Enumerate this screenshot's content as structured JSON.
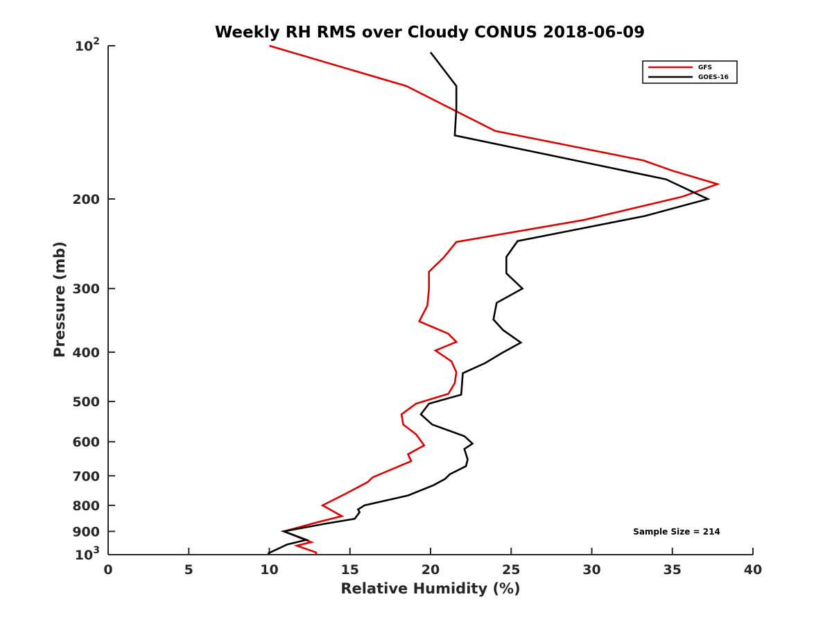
{
  "chart_data": {
    "type": "line",
    "title": "Weekly RH RMS over Cloudy CONUS 2018-06-09",
    "xlabel": "Relative Humidity (%)",
    "ylabel": "Pressure (mb)",
    "xlim": [
      0,
      40
    ],
    "ylim": [
      100,
      1000
    ],
    "y_scale": "log",
    "y_reversed": true,
    "grid": false,
    "legend_position": "top-right",
    "x_ticks": [
      0,
      5,
      10,
      15,
      20,
      25,
      30,
      35,
      40
    ],
    "y_ticks": [
      {
        "value": 100,
        "label": "10",
        "sup": "2"
      },
      {
        "value": 200,
        "label": "200"
      },
      {
        "value": 300,
        "label": "300"
      },
      {
        "value": 400,
        "label": "400"
      },
      {
        "value": 500,
        "label": "500"
      },
      {
        "value": 600,
        "label": "600"
      },
      {
        "value": 700,
        "label": "700"
      },
      {
        "value": 800,
        "label": "800"
      },
      {
        "value": 900,
        "label": "900"
      },
      {
        "value": 1000,
        "label": "10",
        "sup": "3"
      }
    ],
    "annotation": "Sample Size = 214",
    "series": [
      {
        "name": "GFS",
        "color": "#e00000",
        "points": [
          [
            10,
            100
          ],
          [
            18.5,
            120
          ],
          [
            24,
            147
          ],
          [
            33.2,
            168
          ],
          [
            35,
            176
          ],
          [
            37.8,
            187
          ],
          [
            35.6,
            198
          ],
          [
            29.5,
            220
          ],
          [
            21.6,
            243
          ],
          [
            20.8,
            261
          ],
          [
            19.9,
            278
          ],
          [
            19.9,
            300
          ],
          [
            19.8,
            324
          ],
          [
            19.3,
            348
          ],
          [
            21.1,
            368
          ],
          [
            21.6,
            382
          ],
          [
            20.3,
            397
          ],
          [
            21.3,
            417
          ],
          [
            21.6,
            438
          ],
          [
            21.5,
            460
          ],
          [
            21.1,
            483
          ],
          [
            19.1,
            505
          ],
          [
            18.2,
            530
          ],
          [
            18.3,
            555
          ],
          [
            19.1,
            580
          ],
          [
            19.6,
            610
          ],
          [
            18.6,
            635
          ],
          [
            18.8,
            655
          ],
          [
            16.4,
            705
          ],
          [
            16.1,
            720
          ],
          [
            14.7,
            760
          ],
          [
            13.3,
            800
          ],
          [
            14.5,
            840
          ],
          [
            12.9,
            865
          ],
          [
            10.9,
            900
          ],
          [
            12.6,
            945
          ],
          [
            11.7,
            960
          ],
          [
            12.9,
            990
          ],
          [
            12.9,
            1000
          ]
        ]
      },
      {
        "name": "GOES-16",
        "color": "#000000",
        "points": [
          [
            20,
            103
          ],
          [
            21.6,
            120
          ],
          [
            21.6,
            133
          ],
          [
            21.5,
            150
          ],
          [
            34.6,
            183
          ],
          [
            37.2,
            200
          ],
          [
            33.3,
            216
          ],
          [
            25.4,
            242
          ],
          [
            24.7,
            260
          ],
          [
            24.7,
            280
          ],
          [
            25.7,
            300
          ],
          [
            24.1,
            320
          ],
          [
            23.9,
            345
          ],
          [
            24.5,
            362
          ],
          [
            25.6,
            383
          ],
          [
            24.4,
            402
          ],
          [
            23.4,
            420
          ],
          [
            22,
            440
          ],
          [
            21.9,
            485
          ],
          [
            19.9,
            505
          ],
          [
            19.4,
            530
          ],
          [
            20.1,
            555
          ],
          [
            22.1,
            585
          ],
          [
            22.6,
            605
          ],
          [
            22.1,
            620
          ],
          [
            22.3,
            650
          ],
          [
            22.2,
            670
          ],
          [
            21.2,
            695
          ],
          [
            20.9,
            710
          ],
          [
            20.2,
            730
          ],
          [
            18.6,
            765
          ],
          [
            15.9,
            800
          ],
          [
            15.5,
            815
          ],
          [
            15.6,
            825
          ],
          [
            15.3,
            850
          ],
          [
            13.4,
            870
          ],
          [
            10.9,
            900
          ],
          [
            12.3,
            935
          ],
          [
            11.1,
            955
          ],
          [
            9.9,
            995
          ]
        ]
      }
    ]
  }
}
